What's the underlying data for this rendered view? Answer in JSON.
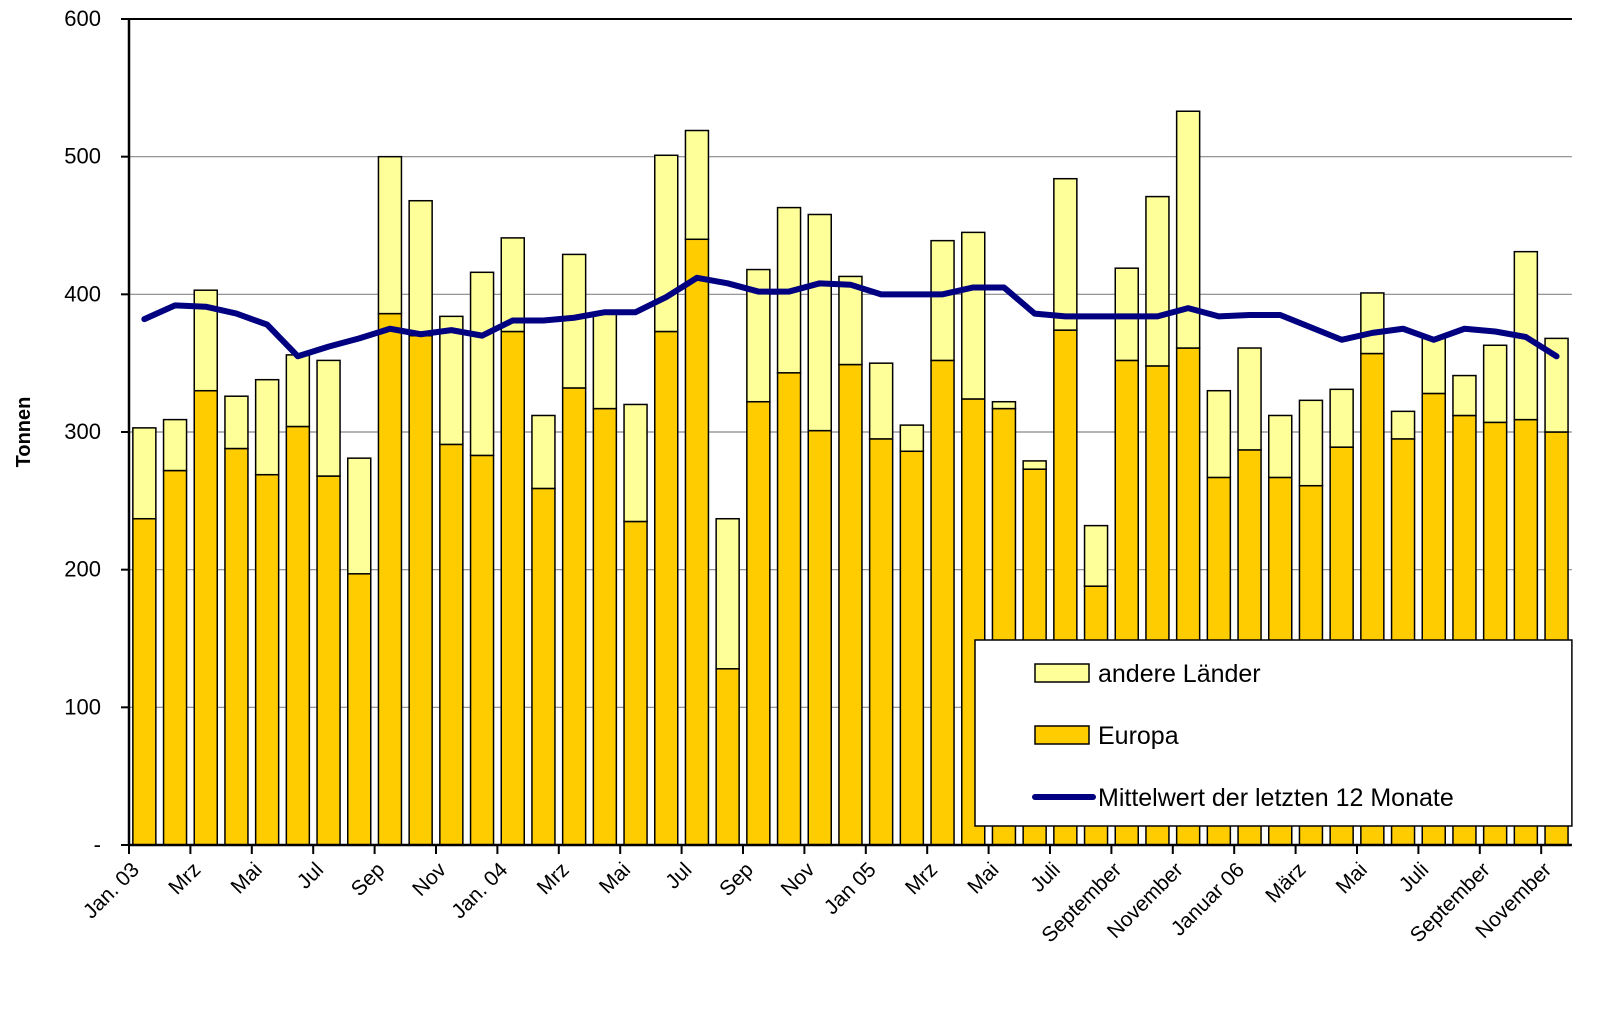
{
  "chart_data": {
    "type": "bar",
    "stacked": true,
    "y_label": "Tonnen",
    "categories": [
      "Jan. 03",
      null,
      "Mrz",
      null,
      "Mai",
      null,
      "Jul",
      null,
      "Sep",
      null,
      "Nov",
      null,
      "Jan. 04",
      null,
      "Mrz",
      null,
      "Mai",
      null,
      "Jul",
      null,
      "Sep",
      null,
      "Nov",
      null,
      "Jan 05",
      null,
      "Mrz",
      null,
      "Mai",
      null,
      "Juli",
      null,
      "September",
      null,
      "November",
      null,
      "Januar 06",
      null,
      "März",
      null,
      "Mai",
      null,
      "Juli",
      null,
      "September",
      null,
      "November"
    ],
    "series": [
      {
        "name": "Europa",
        "type": "bar",
        "color": "#FFCC00",
        "values": [
          237,
          272,
          330,
          288,
          269,
          304,
          268,
          197,
          386,
          370,
          291,
          283,
          373,
          259,
          332,
          317,
          235,
          373,
          440,
          128,
          322,
          343,
          301,
          349,
          295,
          286,
          352,
          324,
          317,
          273,
          374,
          188,
          352,
          348,
          361,
          267,
          287,
          267,
          261,
          289,
          357,
          295,
          328,
          312,
          307,
          309,
          300
        ]
      },
      {
        "name": "andere Länder",
        "type": "bar",
        "color": "#FFFF99",
        "values": [
          66,
          37,
          73,
          38,
          69,
          52,
          84,
          84,
          114,
          98,
          93,
          133,
          68,
          53,
          97,
          69,
          85,
          128,
          79,
          109,
          96,
          120,
          157,
          64,
          55,
          19,
          87,
          121,
          5,
          6,
          110,
          44,
          67,
          123,
          172,
          63,
          74,
          45,
          62,
          42,
          44,
          20,
          40,
          29,
          56,
          122,
          68
        ]
      },
      {
        "name": "Mittelwert der letzten 12 Monate",
        "type": "line",
        "color": "#000080",
        "values": [
          382,
          392,
          391,
          386,
          378,
          355,
          362,
          368,
          375,
          371,
          374,
          370,
          381,
          381,
          383,
          387,
          387,
          398,
          412,
          408,
          402,
          402,
          408,
          407,
          400,
          400,
          400,
          405,
          405,
          386,
          384,
          384,
          384,
          384,
          390,
          384,
          385,
          385,
          376,
          367,
          372,
          375,
          367,
          375,
          373,
          369,
          355
        ]
      }
    ],
    "ylim": [
      0,
      600
    ],
    "yticks": [
      {
        "value": 0,
        "label": "-"
      },
      100,
      200,
      300,
      400,
      500,
      600
    ],
    "grid": true,
    "legend": "lower right"
  }
}
